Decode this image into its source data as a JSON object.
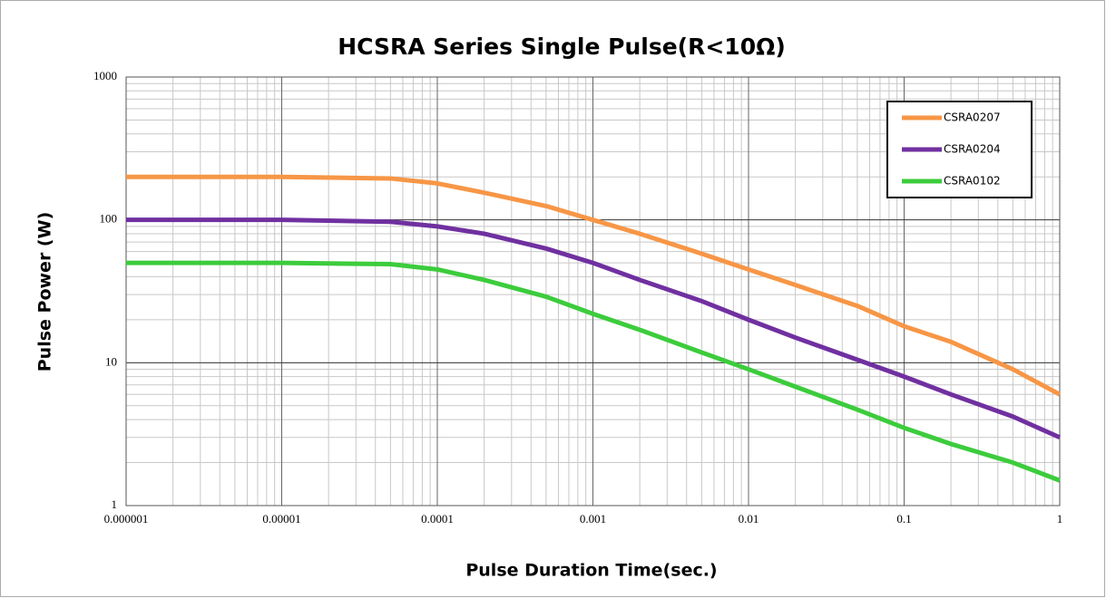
{
  "chart_data": {
    "type": "line",
    "title": "HCSRA Series Single Pulse(R<10Ω)",
    "xlabel": "Pulse Duration Time(sec.)",
    "ylabel": "Pulse Power (W)",
    "x": [
      1e-06,
      1e-05,
      5e-05,
      0.0001,
      0.0002,
      0.0005,
      0.001,
      0.002,
      0.005,
      0.01,
      0.02,
      0.05,
      0.1,
      0.2,
      0.5,
      1
    ],
    "series": [
      {
        "name": "CSRA0207",
        "color": "#f79646",
        "values": [
          200,
          200,
          195,
          180,
          155,
          125,
          100,
          80,
          58,
          45,
          35,
          25,
          18,
          14,
          9,
          6
        ]
      },
      {
        "name": "CSRA0204",
        "color": "#7030a0",
        "values": [
          100,
          100,
          97,
          90,
          80,
          63,
          50,
          38,
          27,
          20,
          15,
          10.5,
          8,
          6,
          4.2,
          3
        ]
      },
      {
        "name": "CSRA0102",
        "color": "#3ccc3c",
        "values": [
          50,
          50,
          49,
          45,
          38,
          29,
          22,
          17,
          11.8,
          9,
          6.8,
          4.7,
          3.5,
          2.7,
          2,
          1.5
        ]
      }
    ],
    "xlim": [
      1e-06,
      1
    ],
    "ylim": [
      1,
      1000
    ],
    "xticks": [
      1e-06,
      1e-05,
      0.0001,
      0.001,
      0.01,
      0.1,
      1
    ],
    "yticks": [
      1,
      10,
      100,
      1000
    ],
    "xscale": "log",
    "yscale": "log",
    "grid": true,
    "minor_grid": true,
    "legend": "upper right"
  }
}
